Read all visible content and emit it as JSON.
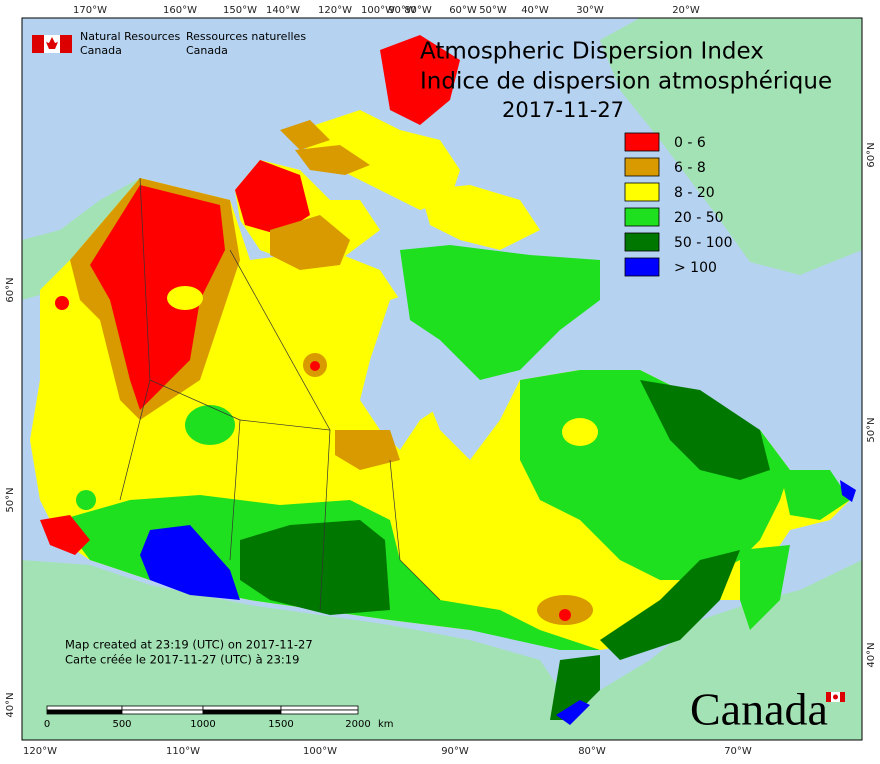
{
  "header": {
    "title": "Atmospheric Dispersion Index",
    "title_fr": "Indice de dispersion atmosphérique",
    "date": "2017-11-27"
  },
  "agency": {
    "en": [
      "Natural Resources",
      "Canada"
    ],
    "fr": [
      "Ressources naturelles",
      "Canada"
    ]
  },
  "legend": [
    {
      "label": "0 - 6",
      "color": "#ff0000"
    },
    {
      "label": "6 - 8",
      "color": "#d99a00"
    },
    {
      "label": "8 - 20",
      "color": "#ffff00"
    },
    {
      "label": "20 - 50",
      "color": "#1ee01e"
    },
    {
      "label": "50 - 100",
      "color": "#007800"
    },
    {
      "label": "> 100",
      "color": "#0000ff"
    }
  ],
  "graticule": {
    "top": [
      "170°W",
      "160°W",
      "150°W",
      "140°W",
      "120°W",
      "100°W",
      "90°W",
      "80°W",
      "60°W",
      "50°W",
      "40°W",
      "30°W",
      "20°W"
    ],
    "bottom": [
      "120°W",
      "110°W",
      "100°W",
      "90°W",
      "80°W",
      "70°W"
    ],
    "left": [
      "60°N",
      "50°N",
      "40°N"
    ],
    "right": [
      "60°N",
      "50°N",
      "40°N"
    ]
  },
  "scale_bar": {
    "labels": [
      "0",
      "500",
      "1000",
      "1500",
      "2000"
    ],
    "unit": "km"
  },
  "notes": [
    "Map created at 23:19 (UTC) on 2017-11-27",
    "Carte créée le 2017-11-27 (UTC) à 23:19"
  ],
  "wordmark": "Canada"
}
